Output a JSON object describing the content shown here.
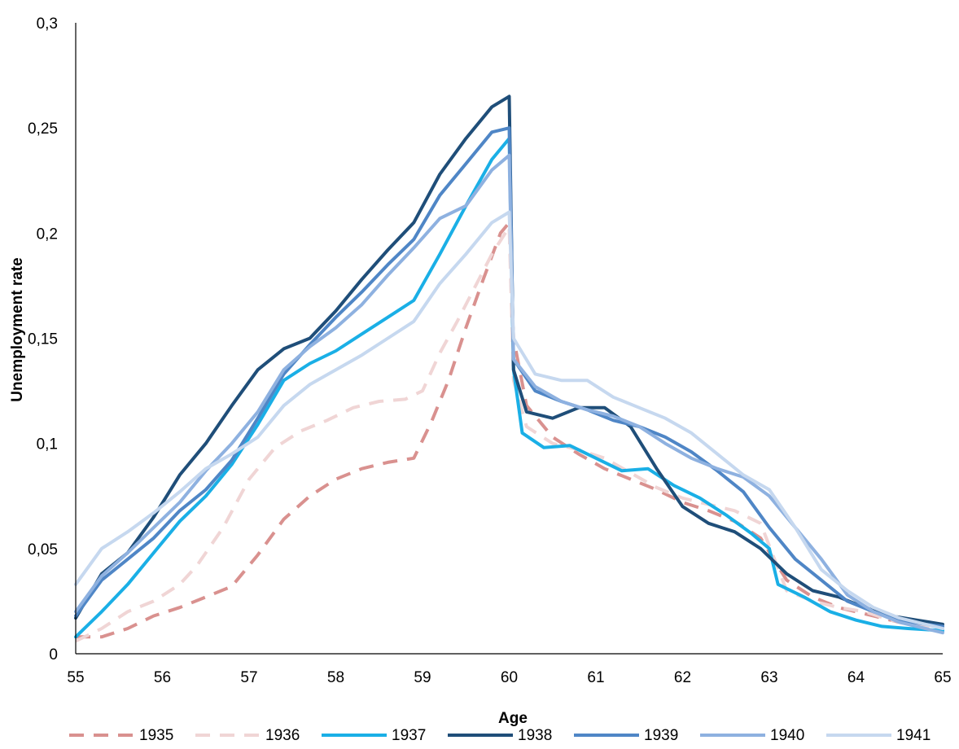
{
  "chart_data": {
    "type": "line",
    "xlabel": "Age",
    "ylabel": "Unemployment rate",
    "xlim": [
      55,
      65
    ],
    "ylim": [
      0,
      0.3
    ],
    "x_ticks": [
      "55",
      "56",
      "57",
      "58",
      "59",
      "60",
      "61",
      "62",
      "63",
      "64",
      "65"
    ],
    "y_ticks": [
      "0",
      "0,05",
      "0,1",
      "0,15",
      "0,2",
      "0,25",
      "0,3"
    ],
    "grid": false,
    "legend_position": "bottom",
    "series": [
      {
        "name": "1935",
        "color": "#d9918f",
        "dash": "dashed",
        "points": [
          [
            55,
            0.008
          ],
          [
            55.3,
            0.008
          ],
          [
            55.6,
            0.012
          ],
          [
            55.9,
            0.018
          ],
          [
            56.2,
            0.022
          ],
          [
            56.5,
            0.027
          ],
          [
            56.8,
            0.032
          ],
          [
            57.1,
            0.047
          ],
          [
            57.4,
            0.064
          ],
          [
            57.7,
            0.075
          ],
          [
            58.0,
            0.083
          ],
          [
            58.3,
            0.088
          ],
          [
            58.6,
            0.091
          ],
          [
            58.9,
            0.093
          ],
          [
            59.1,
            0.11
          ],
          [
            59.3,
            0.13
          ],
          [
            59.5,
            0.155
          ],
          [
            59.7,
            0.178
          ],
          [
            59.9,
            0.2
          ],
          [
            60.0,
            0.205
          ],
          [
            60.05,
            0.15
          ],
          [
            60.2,
            0.118
          ],
          [
            60.5,
            0.103
          ],
          [
            60.8,
            0.095
          ],
          [
            61.1,
            0.088
          ],
          [
            61.4,
            0.083
          ],
          [
            61.7,
            0.078
          ],
          [
            62.0,
            0.072
          ],
          [
            62.3,
            0.068
          ],
          [
            62.6,
            0.063
          ],
          [
            62.9,
            0.055
          ],
          [
            63.2,
            0.035
          ],
          [
            63.5,
            0.027
          ],
          [
            63.8,
            0.022
          ],
          [
            64.1,
            0.019
          ],
          [
            64.4,
            0.016
          ],
          [
            64.7,
            0.013
          ],
          [
            65,
            0.012
          ]
        ]
      },
      {
        "name": "1936",
        "color": "#f0d5d5",
        "dash": "dashed",
        "points": [
          [
            55,
            0.006
          ],
          [
            55.3,
            0.012
          ],
          [
            55.6,
            0.02
          ],
          [
            55.9,
            0.025
          ],
          [
            56.2,
            0.033
          ],
          [
            56.4,
            0.042
          ],
          [
            56.7,
            0.06
          ],
          [
            57.0,
            0.083
          ],
          [
            57.3,
            0.098
          ],
          [
            57.6,
            0.106
          ],
          [
            57.9,
            0.111
          ],
          [
            58.2,
            0.117
          ],
          [
            58.5,
            0.12
          ],
          [
            58.8,
            0.121
          ],
          [
            59.0,
            0.125
          ],
          [
            59.2,
            0.143
          ],
          [
            59.4,
            0.158
          ],
          [
            59.6,
            0.174
          ],
          [
            59.8,
            0.19
          ],
          [
            60.0,
            0.203
          ],
          [
            60.05,
            0.13
          ],
          [
            60.2,
            0.108
          ],
          [
            60.5,
            0.1
          ],
          [
            60.8,
            0.097
          ],
          [
            61.1,
            0.093
          ],
          [
            61.4,
            0.086
          ],
          [
            61.7,
            0.079
          ],
          [
            62.0,
            0.074
          ],
          [
            62.3,
            0.071
          ],
          [
            62.6,
            0.068
          ],
          [
            62.9,
            0.062
          ],
          [
            63.2,
            0.03
          ],
          [
            63.5,
            0.025
          ],
          [
            63.8,
            0.022
          ],
          [
            64.1,
            0.02
          ],
          [
            64.4,
            0.016
          ],
          [
            64.7,
            0.014
          ],
          [
            65,
            0.012
          ]
        ]
      },
      {
        "name": "1937",
        "color": "#1aafe6",
        "dash": "solid",
        "points": [
          [
            55,
            0.008
          ],
          [
            55.3,
            0.02
          ],
          [
            55.6,
            0.033
          ],
          [
            55.9,
            0.048
          ],
          [
            56.2,
            0.063
          ],
          [
            56.5,
            0.075
          ],
          [
            56.8,
            0.09
          ],
          [
            57.1,
            0.109
          ],
          [
            57.4,
            0.13
          ],
          [
            57.7,
            0.138
          ],
          [
            58.0,
            0.144
          ],
          [
            58.3,
            0.152
          ],
          [
            58.6,
            0.16
          ],
          [
            58.9,
            0.168
          ],
          [
            59.2,
            0.19
          ],
          [
            59.5,
            0.213
          ],
          [
            59.8,
            0.235
          ],
          [
            60.0,
            0.245
          ],
          [
            60.05,
            0.135
          ],
          [
            60.15,
            0.105
          ],
          [
            60.4,
            0.098
          ],
          [
            60.7,
            0.099
          ],
          [
            61.0,
            0.093
          ],
          [
            61.3,
            0.087
          ],
          [
            61.6,
            0.088
          ],
          [
            61.9,
            0.08
          ],
          [
            62.2,
            0.074
          ],
          [
            62.5,
            0.066
          ],
          [
            62.8,
            0.057
          ],
          [
            63.0,
            0.05
          ],
          [
            63.1,
            0.033
          ],
          [
            63.4,
            0.027
          ],
          [
            63.7,
            0.02
          ],
          [
            64.0,
            0.016
          ],
          [
            64.3,
            0.013
          ],
          [
            64.6,
            0.012
          ],
          [
            65,
            0.011
          ]
        ]
      },
      {
        "name": "1938",
        "color": "#1f4e79",
        "dash": "solid",
        "points": [
          [
            55,
            0.017
          ],
          [
            55.3,
            0.038
          ],
          [
            55.6,
            0.048
          ],
          [
            55.9,
            0.065
          ],
          [
            56.2,
            0.085
          ],
          [
            56.5,
            0.1
          ],
          [
            56.8,
            0.118
          ],
          [
            57.1,
            0.135
          ],
          [
            57.4,
            0.145
          ],
          [
            57.7,
            0.15
          ],
          [
            58.0,
            0.163
          ],
          [
            58.3,
            0.178
          ],
          [
            58.6,
            0.192
          ],
          [
            58.9,
            0.205
          ],
          [
            59.2,
            0.228
          ],
          [
            59.5,
            0.245
          ],
          [
            59.8,
            0.26
          ],
          [
            60.0,
            0.265
          ],
          [
            60.05,
            0.135
          ],
          [
            60.2,
            0.115
          ],
          [
            60.5,
            0.112
          ],
          [
            60.8,
            0.117
          ],
          [
            61.1,
            0.117
          ],
          [
            61.4,
            0.108
          ],
          [
            61.7,
            0.088
          ],
          [
            62.0,
            0.07
          ],
          [
            62.3,
            0.062
          ],
          [
            62.6,
            0.058
          ],
          [
            62.9,
            0.05
          ],
          [
            63.2,
            0.038
          ],
          [
            63.5,
            0.03
          ],
          [
            63.8,
            0.027
          ],
          [
            64.1,
            0.022
          ],
          [
            64.4,
            0.018
          ],
          [
            64.7,
            0.016
          ],
          [
            65,
            0.014
          ]
        ]
      },
      {
        "name": "1939",
        "color": "#4f86c6",
        "dash": "solid",
        "points": [
          [
            55,
            0.018
          ],
          [
            55.3,
            0.035
          ],
          [
            55.6,
            0.045
          ],
          [
            55.9,
            0.055
          ],
          [
            56.2,
            0.068
          ],
          [
            56.5,
            0.078
          ],
          [
            56.8,
            0.092
          ],
          [
            57.1,
            0.112
          ],
          [
            57.4,
            0.133
          ],
          [
            57.7,
            0.147
          ],
          [
            58.0,
            0.16
          ],
          [
            58.3,
            0.172
          ],
          [
            58.6,
            0.185
          ],
          [
            58.9,
            0.197
          ],
          [
            59.2,
            0.218
          ],
          [
            59.5,
            0.233
          ],
          [
            59.8,
            0.248
          ],
          [
            60.0,
            0.25
          ],
          [
            60.05,
            0.14
          ],
          [
            60.3,
            0.125
          ],
          [
            60.6,
            0.12
          ],
          [
            60.9,
            0.116
          ],
          [
            61.2,
            0.111
          ],
          [
            61.5,
            0.108
          ],
          [
            61.8,
            0.103
          ],
          [
            62.1,
            0.096
          ],
          [
            62.4,
            0.087
          ],
          [
            62.7,
            0.077
          ],
          [
            63.0,
            0.06
          ],
          [
            63.3,
            0.045
          ],
          [
            63.6,
            0.035
          ],
          [
            63.9,
            0.025
          ],
          [
            64.2,
            0.02
          ],
          [
            64.5,
            0.016
          ],
          [
            64.8,
            0.014
          ],
          [
            65,
            0.013
          ]
        ]
      },
      {
        "name": "1940",
        "color": "#8eb1e0",
        "dash": "solid",
        "points": [
          [
            55,
            0.02
          ],
          [
            55.3,
            0.037
          ],
          [
            55.6,
            0.048
          ],
          [
            55.9,
            0.06
          ],
          [
            56.2,
            0.072
          ],
          [
            56.5,
            0.087
          ],
          [
            56.8,
            0.1
          ],
          [
            57.1,
            0.115
          ],
          [
            57.4,
            0.135
          ],
          [
            57.7,
            0.146
          ],
          [
            58.0,
            0.155
          ],
          [
            58.3,
            0.166
          ],
          [
            58.6,
            0.18
          ],
          [
            58.9,
            0.193
          ],
          [
            59.2,
            0.207
          ],
          [
            59.5,
            0.213
          ],
          [
            59.8,
            0.23
          ],
          [
            60.0,
            0.237
          ],
          [
            60.05,
            0.14
          ],
          [
            60.3,
            0.127
          ],
          [
            60.6,
            0.12
          ],
          [
            60.9,
            0.116
          ],
          [
            61.2,
            0.113
          ],
          [
            61.5,
            0.108
          ],
          [
            61.8,
            0.1
          ],
          [
            62.1,
            0.093
          ],
          [
            62.4,
            0.088
          ],
          [
            62.7,
            0.084
          ],
          [
            63.0,
            0.075
          ],
          [
            63.3,
            0.06
          ],
          [
            63.6,
            0.045
          ],
          [
            63.9,
            0.028
          ],
          [
            64.2,
            0.02
          ],
          [
            64.5,
            0.015
          ],
          [
            64.8,
            0.012
          ],
          [
            65,
            0.01
          ]
        ]
      },
      {
        "name": "1941",
        "color": "#c6d8ef",
        "dash": "solid",
        "points": [
          [
            55,
            0.033
          ],
          [
            55.3,
            0.05
          ],
          [
            55.6,
            0.058
          ],
          [
            55.9,
            0.067
          ],
          [
            56.2,
            0.077
          ],
          [
            56.5,
            0.088
          ],
          [
            56.8,
            0.095
          ],
          [
            57.1,
            0.103
          ],
          [
            57.4,
            0.118
          ],
          [
            57.7,
            0.128
          ],
          [
            58.0,
            0.135
          ],
          [
            58.3,
            0.142
          ],
          [
            58.6,
            0.15
          ],
          [
            58.9,
            0.158
          ],
          [
            59.2,
            0.176
          ],
          [
            59.5,
            0.19
          ],
          [
            59.8,
            0.205
          ],
          [
            60.0,
            0.21
          ],
          [
            60.05,
            0.15
          ],
          [
            60.3,
            0.133
          ],
          [
            60.6,
            0.13
          ],
          [
            60.9,
            0.13
          ],
          [
            61.2,
            0.122
          ],
          [
            61.5,
            0.117
          ],
          [
            61.8,
            0.112
          ],
          [
            62.1,
            0.105
          ],
          [
            62.4,
            0.095
          ],
          [
            62.7,
            0.085
          ],
          [
            63.0,
            0.078
          ],
          [
            63.3,
            0.06
          ],
          [
            63.6,
            0.04
          ],
          [
            63.9,
            0.03
          ],
          [
            64.2,
            0.022
          ],
          [
            64.5,
            0.017
          ],
          [
            64.8,
            0.014
          ],
          [
            65,
            0.012
          ]
        ]
      }
    ]
  }
}
